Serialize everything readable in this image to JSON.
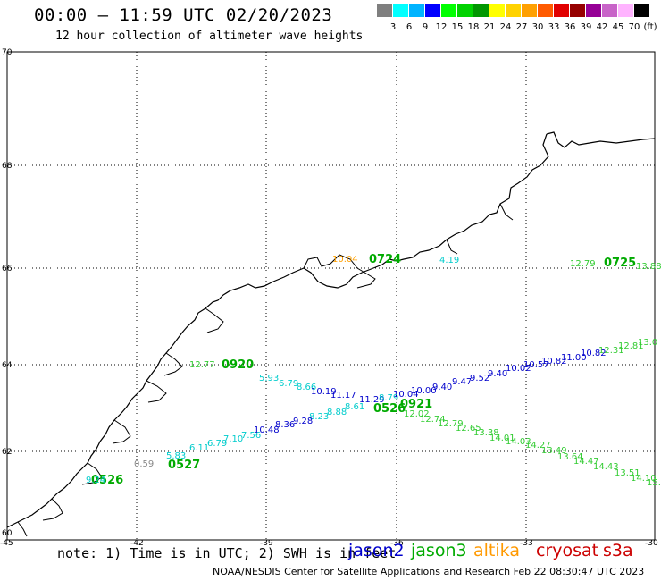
{
  "header": {
    "title": "00:00 – 11:59 UTC 02/20/2023",
    "subtitle": "12 hour collection of altimeter wave heights"
  },
  "colorbar": {
    "colors": [
      "#7f7f7f",
      "#00ffff",
      "#00b4ff",
      "#0000ff",
      "#00ff00",
      "#00d200",
      "#009600",
      "#ffff00",
      "#ffd200",
      "#ffa000",
      "#ff5a00",
      "#e10000",
      "#960000",
      "#960096",
      "#c864c8",
      "#ffb4ff",
      "#000000"
    ],
    "labels": [
      "3",
      "6",
      "9",
      "12",
      "15",
      "18",
      "21",
      "24",
      "27",
      "30",
      "33",
      "36",
      "39",
      "42",
      "45",
      "70",
      "(ft)"
    ]
  },
  "axes": {
    "lon_ticks": [
      "-45",
      "-42",
      "-39",
      "-36",
      "-33",
      "-30"
    ],
    "lat_ticks": [
      "70",
      "68",
      "66",
      "64",
      "62",
      "60"
    ]
  },
  "tracks": [
    {
      "satellite": "jason3",
      "color": "#00aa00",
      "time": "0724",
      "points": [
        {
          "label": "4.19",
          "color": "#00cccc"
        },
        {
          "label": "10.04",
          "color": "#ffa000"
        }
      ]
    },
    {
      "satellite": "jason3",
      "color": "#00aa00",
      "time": "0725",
      "points": [
        {
          "label": "12.79"
        },
        {
          "label": "12.77"
        },
        {
          "label": "13.88"
        }
      ]
    },
    {
      "satellite": "jason3",
      "color": "#00aa00",
      "time": "0920",
      "points": [
        {
          "label": "12.77"
        }
      ]
    },
    {
      "satellite": "jason2",
      "color": "#0000cc",
      "time": "0921",
      "points": [
        {
          "label": "10.04"
        },
        {
          "label": "10.00"
        },
        {
          "label": "9.40"
        },
        {
          "label": "9.47"
        },
        {
          "label": "9.52"
        },
        {
          "label": "9.40"
        },
        {
          "label": "10.02"
        },
        {
          "label": "10.57"
        },
        {
          "label": "10.82"
        },
        {
          "label": "11.00"
        },
        {
          "label": "10.82"
        },
        {
          "label": "12.31"
        },
        {
          "label": "12.81"
        },
        {
          "label": "13.0"
        },
        {
          "label": "13.7"
        }
      ]
    },
    {
      "satellite": "jason3",
      "color": "#00aa00",
      "time": "0526",
      "points": [
        {
          "label": "12.02"
        },
        {
          "label": "12.74"
        },
        {
          "label": "12.79"
        },
        {
          "label": "12.65"
        },
        {
          "label": "13.38"
        },
        {
          "label": "14.01"
        },
        {
          "label": "14.03"
        },
        {
          "label": "14.27"
        },
        {
          "label": "13.49"
        },
        {
          "label": "13.64"
        },
        {
          "label": "14.47"
        },
        {
          "label": "14.43"
        },
        {
          "label": "13.51"
        },
        {
          "label": "14.10"
        },
        {
          "label": "15."
        }
      ]
    },
    {
      "satellite": "jason2",
      "color": "#0000cc",
      "time": "0527",
      "points": [
        {
          "label": "5.93"
        },
        {
          "label": "6.79"
        },
        {
          "label": "8.66"
        },
        {
          "label": "10.19"
        },
        {
          "label": "11.17"
        },
        {
          "label": "11.29"
        },
        {
          "label": "8.79"
        },
        {
          "label": "8.61"
        },
        {
          "label": "8.88"
        },
        {
          "label": "8.23"
        },
        {
          "label": "9.28"
        },
        {
          "label": "8.36"
        },
        {
          "label": "10.48"
        },
        {
          "label": "7.56"
        },
        {
          "label": "7.10"
        },
        {
          "label": "6.79"
        },
        {
          "label": "6.11"
        },
        {
          "label": "5.83"
        },
        {
          "label": "9.24"
        },
        {
          "label": "0.59"
        }
      ]
    }
  ],
  "footer": {
    "note": "note:  1) Time is in UTC;  2) SWH is in feet",
    "satellites": [
      {
        "name": "jason2",
        "color": "#0000cc"
      },
      {
        "name": "jason3",
        "color": "#00aa00"
      },
      {
        "name": "altika",
        "color": "#ff9900"
      },
      {
        "name": "cryosat",
        "color": "#cc0000"
      },
      {
        "name": "s3a",
        "color": "#cc0000"
      }
    ],
    "credit": "NOAA/NESDIS Center for Satellite Applications and Research     Feb 22 08:30:47 UTC 2023"
  }
}
